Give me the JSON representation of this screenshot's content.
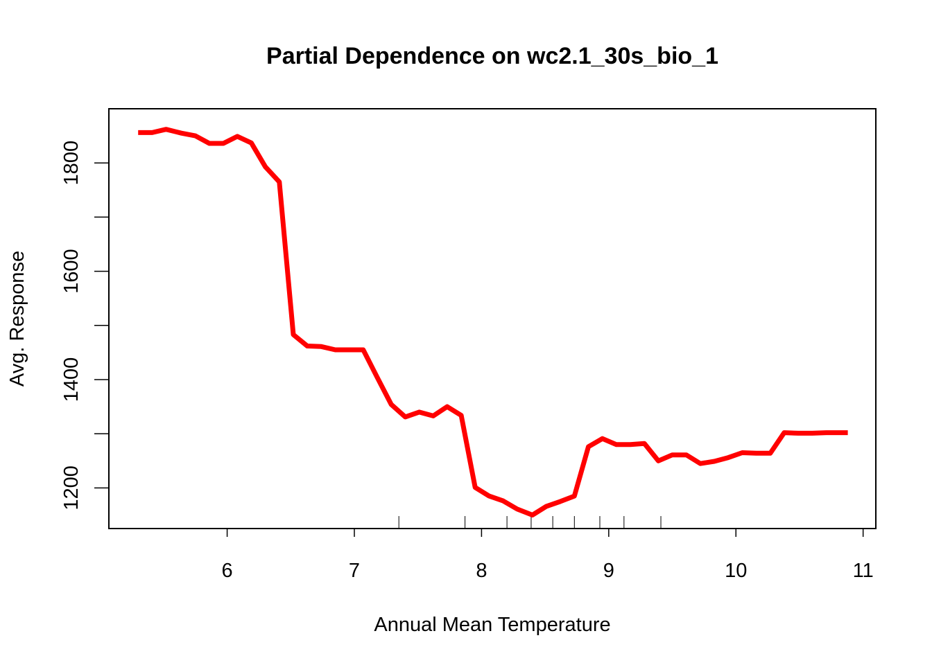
{
  "chart_data": {
    "type": "line",
    "title": "Partial Dependence on wc2.1_30s_bio_1",
    "xlabel": "Annual Mean Temperature",
    "ylabel": "Avg. Response",
    "xlim": [
      5.07,
      11.1
    ],
    "ylim": [
      1125,
      1900
    ],
    "x_ticks": [
      {
        "value": 6,
        "label": "6"
      },
      {
        "value": 7,
        "label": "7"
      },
      {
        "value": 8,
        "label": "8"
      },
      {
        "value": 9,
        "label": "9"
      },
      {
        "value": 10,
        "label": "10"
      },
      {
        "value": 11,
        "label": "11"
      }
    ],
    "y_ticks": [
      {
        "value": 1200,
        "label": "1200"
      },
      {
        "value": 1400,
        "label": "1400"
      },
      {
        "value": 1600,
        "label": "1600"
      },
      {
        "value": 1800,
        "label": "1800"
      }
    ],
    "y_minor_ticks": [
      1300,
      1500,
      1700
    ],
    "series": [
      {
        "color": "#ff0000",
        "x": [
          5.3,
          5.41,
          5.52,
          5.64,
          5.75,
          5.86,
          5.97,
          6.08,
          6.19,
          6.3,
          6.41,
          6.52,
          6.63,
          6.74,
          6.85,
          6.96,
          7.07,
          7.18,
          7.29,
          7.4,
          7.51,
          7.62,
          7.73,
          7.84,
          7.95,
          8.06,
          8.17,
          8.28,
          8.4,
          8.51,
          8.62,
          8.73,
          8.84,
          8.95,
          9.06,
          9.17,
          9.28,
          9.39,
          9.5,
          9.61,
          9.72,
          9.83,
          9.94,
          10.05,
          10.16,
          10.27,
          10.38,
          10.49,
          10.6,
          10.71,
          10.82,
          10.88
        ],
        "y": [
          1856,
          1856,
          1862,
          1855,
          1850,
          1836,
          1836,
          1849,
          1837,
          1793,
          1765,
          1483,
          1462,
          1461,
          1455,
          1455,
          1455,
          1404,
          1354,
          1331,
          1340,
          1333,
          1350,
          1334,
          1201,
          1185,
          1176,
          1161,
          1150,
          1166,
          1175,
          1185,
          1276,
          1291,
          1280,
          1280,
          1282,
          1250,
          1261,
          1261,
          1245,
          1249,
          1256,
          1265,
          1264,
          1264,
          1302,
          1301,
          1301,
          1302,
          1302,
          1302
        ]
      }
    ],
    "rug": [
      7.35,
      7.87,
      8.2,
      8.39,
      8.56,
      8.73,
      8.93,
      9.12,
      9.41
    ]
  }
}
